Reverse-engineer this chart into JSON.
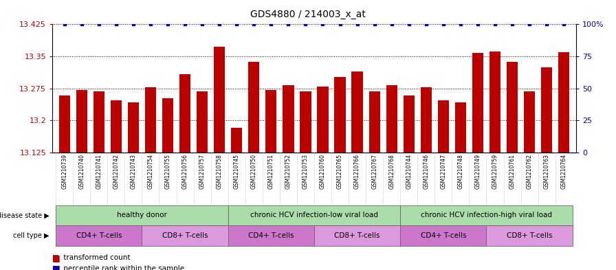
{
  "title": "GDS4880 / 214003_x_at",
  "samples": [
    "GSM1210739",
    "GSM1210740",
    "GSM1210741",
    "GSM1210742",
    "GSM1210743",
    "GSM1210754",
    "GSM1210755",
    "GSM1210756",
    "GSM1210757",
    "GSM1210758",
    "GSM1210745",
    "GSM1210750",
    "GSM1210751",
    "GSM1210752",
    "GSM1210753",
    "GSM1210760",
    "GSM1210765",
    "GSM1210766",
    "GSM1210767",
    "GSM1210768",
    "GSM1210744",
    "GSM1210746",
    "GSM1210747",
    "GSM1210748",
    "GSM1210749",
    "GSM1210759",
    "GSM1210761",
    "GSM1210762",
    "GSM1210763",
    "GSM1210764"
  ],
  "bar_values": [
    13.258,
    13.272,
    13.268,
    13.248,
    13.242,
    13.278,
    13.252,
    13.308,
    13.268,
    13.372,
    13.183,
    13.338,
    13.272,
    13.282,
    13.268,
    13.28,
    13.302,
    13.315,
    13.268,
    13.282,
    13.258,
    13.278,
    13.248,
    13.242,
    13.358,
    13.362,
    13.338,
    13.268,
    13.325,
    13.36
  ],
  "percentile_values": [
    100,
    100,
    100,
    100,
    100,
    100,
    100,
    100,
    100,
    100,
    100,
    100,
    100,
    100,
    100,
    100,
    100,
    100,
    100,
    100,
    100,
    100,
    100,
    100,
    100,
    100,
    100,
    100,
    100,
    100
  ],
  "ylim_left": [
    13.125,
    13.425
  ],
  "ylim_right": [
    0,
    100
  ],
  "yticks_left": [
    13.125,
    13.2,
    13.275,
    13.35,
    13.425
  ],
  "yticks_right": [
    0,
    25,
    50,
    75,
    100
  ],
  "ytick_labels_right": [
    "0",
    "25",
    "50",
    "75",
    "100%"
  ],
  "bar_color": "#bb0000",
  "percentile_color": "#0000bb",
  "bg_color": "#ffffff",
  "plot_bg_color": "#ffffff",
  "disease_groups": [
    {
      "start": 0,
      "end": 9,
      "label": "healthy donor",
      "color": "#aaddaa"
    },
    {
      "start": 10,
      "end": 19,
      "label": "chronic HCV infection-low viral load",
      "color": "#aaddaa"
    },
    {
      "start": 20,
      "end": 29,
      "label": "chronic HCV infection-high viral load",
      "color": "#aaddaa"
    }
  ],
  "cell_groups": [
    {
      "start": 0,
      "end": 4,
      "label": "CD4+ T-cells",
      "color": "#cc77cc"
    },
    {
      "start": 5,
      "end": 9,
      "label": "CD8+ T-cells",
      "color": "#dd99dd"
    },
    {
      "start": 10,
      "end": 14,
      "label": "CD4+ T-cells",
      "color": "#cc77cc"
    },
    {
      "start": 15,
      "end": 19,
      "label": "CD8+ T-cells",
      "color": "#dd99dd"
    },
    {
      "start": 20,
      "end": 24,
      "label": "CD4+ T-cells",
      "color": "#cc77cc"
    },
    {
      "start": 25,
      "end": 29,
      "label": "CD8+ T-cells",
      "color": "#dd99dd"
    }
  ]
}
